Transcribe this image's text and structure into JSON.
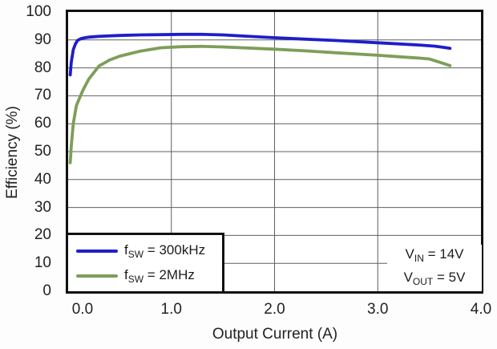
{
  "figure": {
    "background": "#fdfdfd",
    "frame_color": "#111111",
    "grid_color": "#5f5f5f",
    "text_color": "#222222"
  },
  "chart_data": {
    "type": "line",
    "title": "",
    "xlabel": "Output Current (A)",
    "ylabel": "Efficiency (%)",
    "xlim": [
      0.0,
      4.0
    ],
    "ylim": [
      0,
      100
    ],
    "grid": true,
    "legend_position": "bottom-left",
    "x_ticks": {
      "values": [
        0,
        1,
        2,
        3,
        4
      ],
      "labels": [
        "0.0",
        "1.0",
        "2.0",
        "3.0",
        "4.0"
      ]
    },
    "y_ticks": {
      "values": [
        0,
        10,
        20,
        30,
        40,
        50,
        60,
        70,
        80,
        90,
        100
      ],
      "labels": [
        "0",
        "10",
        "20",
        "30",
        "40",
        "50",
        "60",
        "70",
        "80",
        "90",
        "100"
      ]
    },
    "x_gridlines": [
      1,
      2,
      3
    ],
    "y_gridlines": [
      10,
      20,
      30,
      40,
      50,
      60,
      70,
      80,
      90
    ],
    "series": [
      {
        "name": "fSW = 300kHz",
        "label_parts": {
          "prefix": "f",
          "sub": "SW",
          "rest": " = 300kHz"
        },
        "color": "#1e1ecb",
        "x": [
          0.02,
          0.03,
          0.05,
          0.07,
          0.09,
          0.12,
          0.15,
          0.2,
          0.3,
          0.5,
          0.7,
          0.9,
          1.1,
          1.3,
          1.5,
          1.8,
          2.0,
          2.3,
          2.6,
          3.0,
          3.2,
          3.4,
          3.55,
          3.65,
          3.7
        ],
        "y": [
          77.5,
          82,
          86.5,
          88.5,
          89.8,
          90.4,
          90.7,
          91.0,
          91.3,
          91.6,
          91.8,
          91.9,
          92.0,
          92.0,
          91.8,
          91.2,
          90.8,
          90.3,
          89.8,
          89.0,
          88.6,
          88.2,
          87.8,
          87.3,
          87.0
        ]
      },
      {
        "name": "fSW = 2MHz",
        "label_parts": {
          "prefix": "f",
          "sub": "SW",
          "rest": " = 2MHz"
        },
        "color": "#7d9e58",
        "x": [
          0.02,
          0.03,
          0.05,
          0.08,
          0.12,
          0.15,
          0.2,
          0.3,
          0.4,
          0.5,
          0.7,
          0.9,
          1.1,
          1.3,
          1.5,
          1.8,
          2.0,
          2.3,
          2.6,
          3.0,
          3.2,
          3.4,
          3.5,
          3.6,
          3.7
        ],
        "y": [
          46,
          52,
          60,
          66.5,
          70,
          72.5,
          76,
          80.7,
          82.8,
          84.2,
          86.0,
          87.2,
          87.6,
          87.7,
          87.5,
          87.0,
          86.7,
          86.1,
          85.4,
          84.5,
          84.0,
          83.5,
          83.2,
          82.0,
          80.8
        ]
      }
    ],
    "annotation": {
      "lines": [
        {
          "prefix": "V",
          "sub": "IN",
          "rest": " = 14V"
        },
        {
          "prefix": "V",
          "sub": "OUT",
          "rest": " = 5V"
        }
      ]
    }
  }
}
